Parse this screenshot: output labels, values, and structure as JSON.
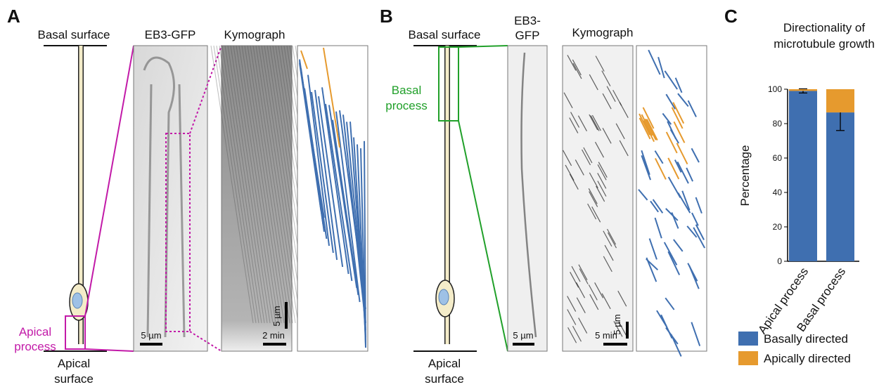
{
  "panel_a": {
    "label": "A",
    "basal_surface": "Basal surface",
    "apical_surface": [
      "Apical",
      "surface"
    ],
    "apical_process": [
      "Apical",
      "process"
    ],
    "image_title": "EB3-GFP",
    "kymograph_title": "Kymograph",
    "scale_image": "5 µm",
    "scale_kymo_space": "5 µm",
    "scale_kymo_time": "2 min"
  },
  "panel_b": {
    "label": "B",
    "basal_surface": "Basal surface",
    "apical_surface": [
      "Apical",
      "surface"
    ],
    "basal_process": [
      "Basal",
      "process"
    ],
    "image_title": [
      "EB3-",
      "GFP"
    ],
    "kymograph_title": "Kymograph",
    "scale_image": "5 µm",
    "scale_kymo_space": "5 µm",
    "scale_kymo_time": "5 min"
  },
  "panel_c_label": "C",
  "chart_data": {
    "type": "stacked-bar",
    "title": [
      "Directionality of",
      "microtubule growth"
    ],
    "y_label": "Percentage",
    "categories": [
      "Apical process",
      "Basal process"
    ],
    "series": [
      {
        "name": "Basally directed",
        "color": "#3f6fb0",
        "values": [
          99,
          86.5
        ],
        "errors": [
          1.2,
          10.5
        ]
      },
      {
        "name": "Apically directed",
        "color": "#e69a2e",
        "values": [
          1,
          13.5
        ]
      }
    ],
    "ylim": [
      0,
      100
    ],
    "yticks": [
      0,
      20,
      40,
      60,
      80,
      100
    ]
  }
}
